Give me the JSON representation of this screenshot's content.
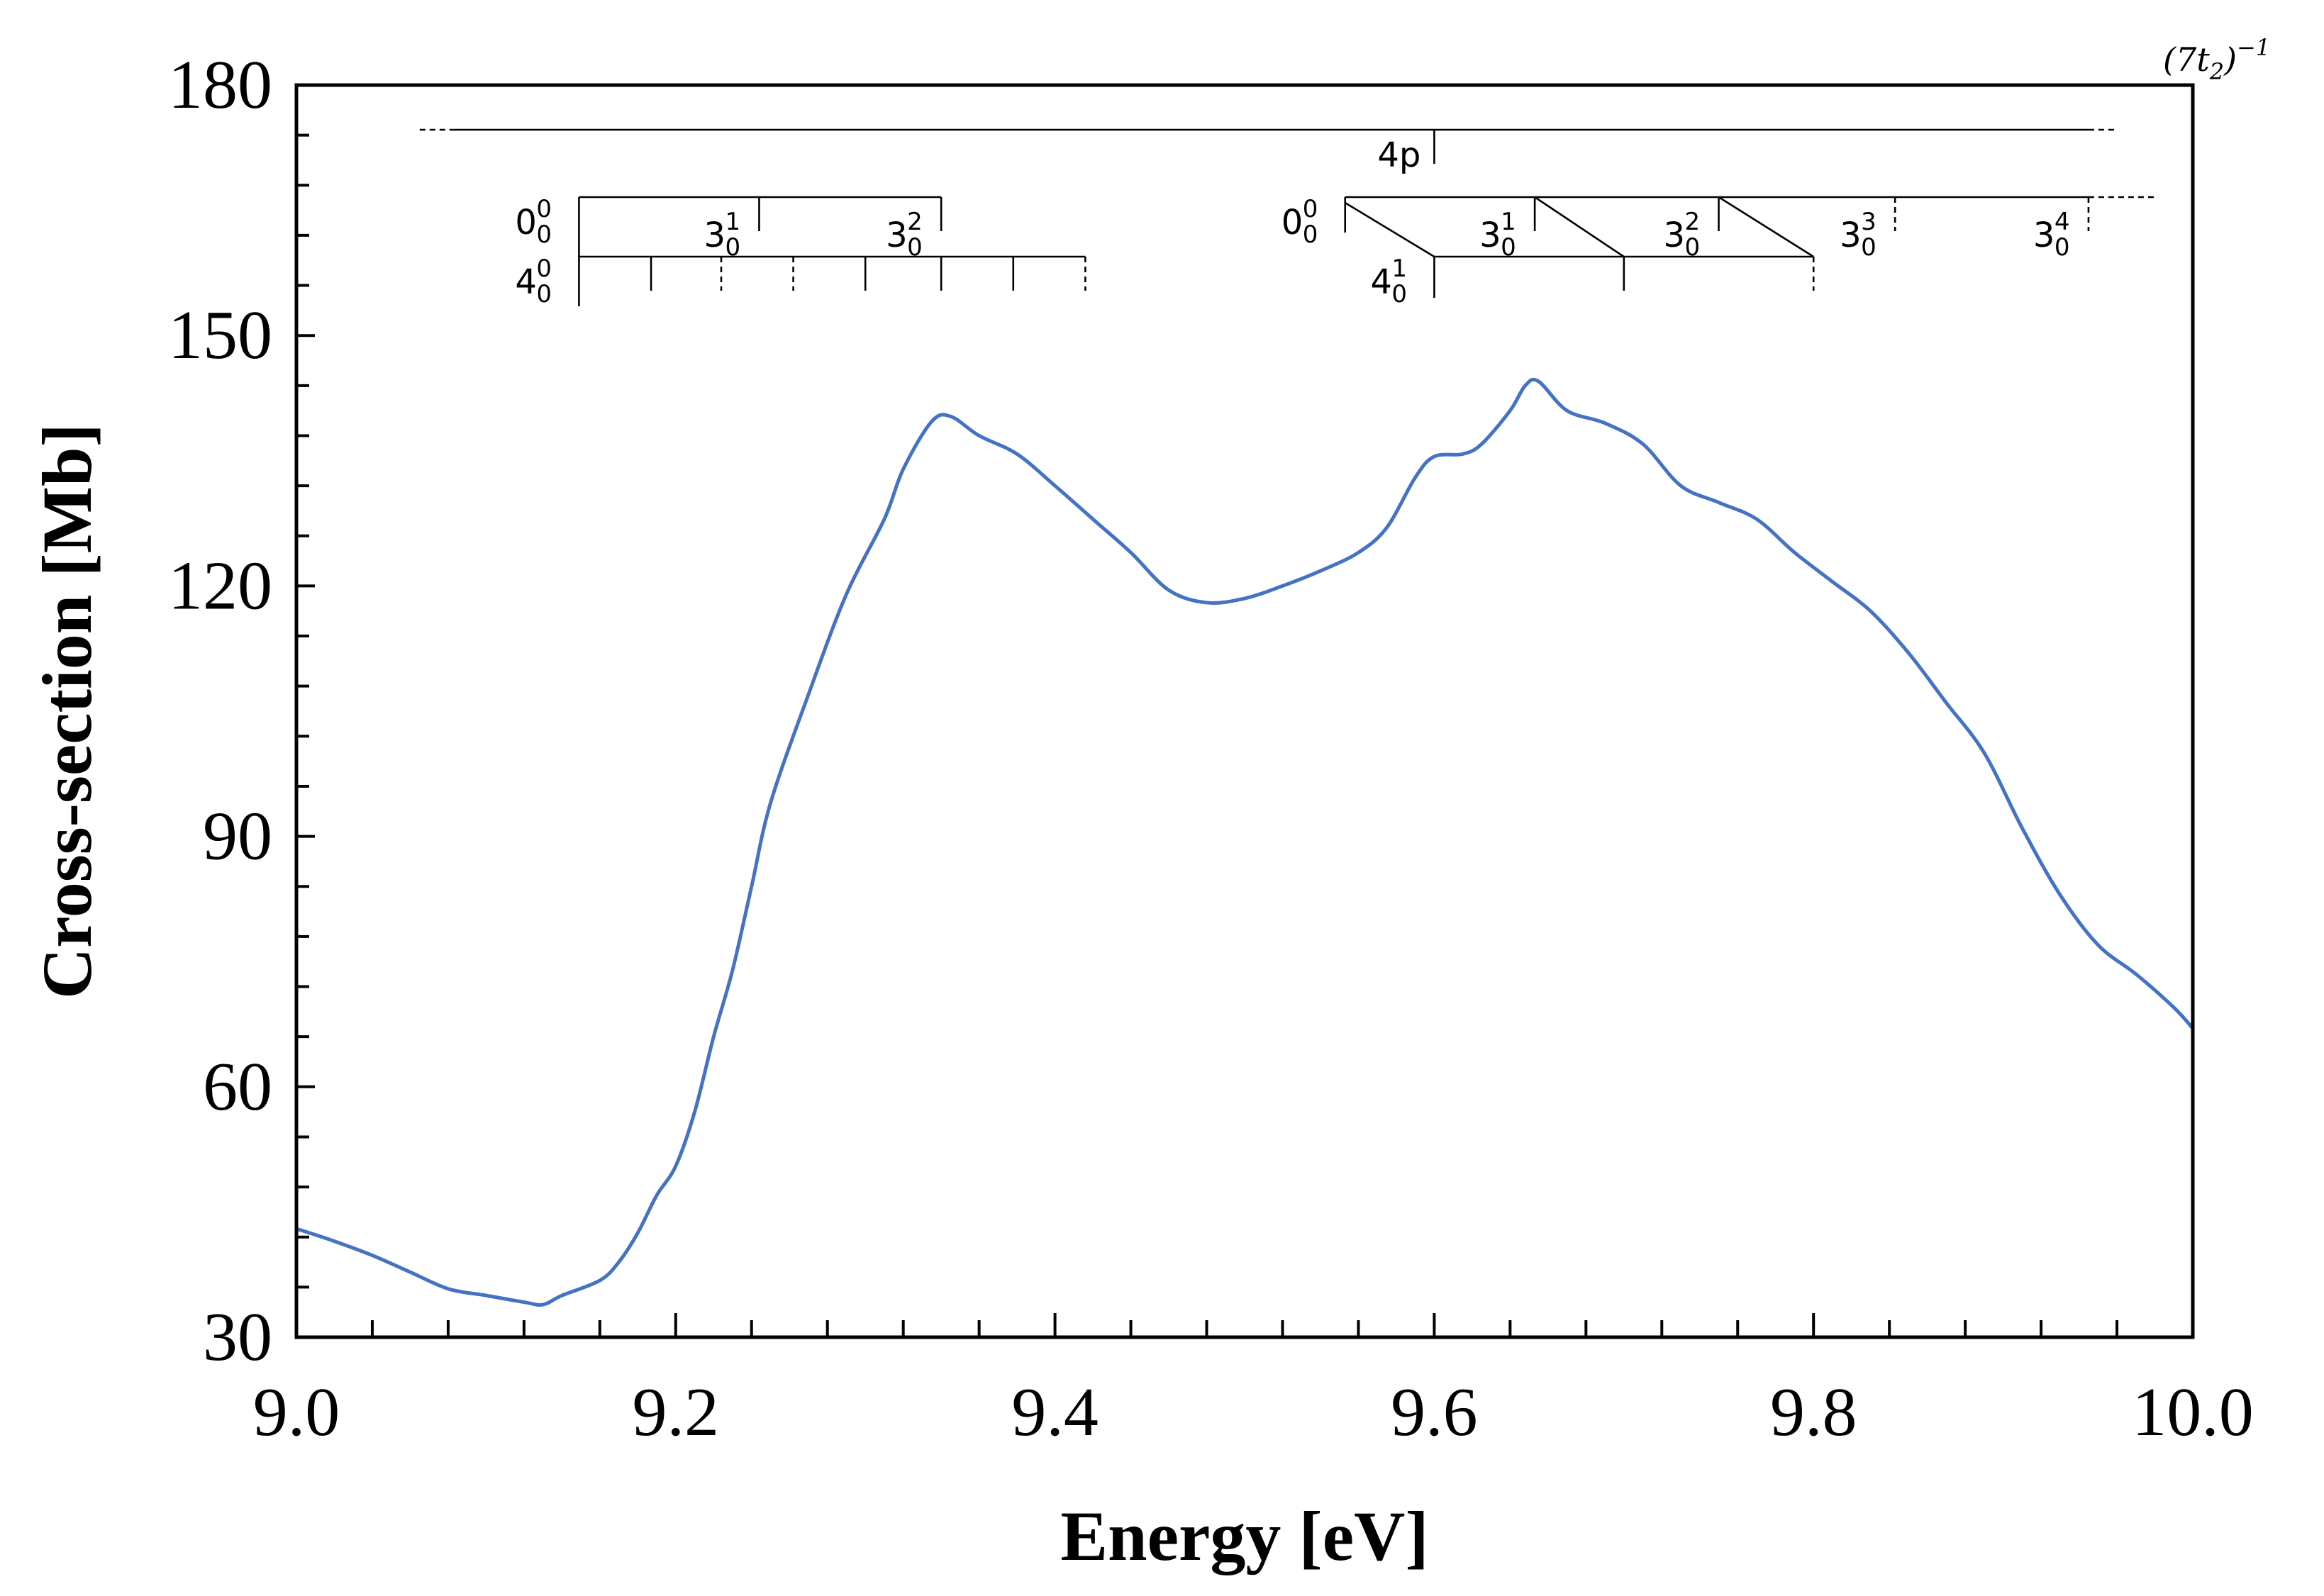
{
  "chart_data": {
    "type": "line",
    "xlabel": "Energy [eV]",
    "ylabel": "Cross-section [Mb]",
    "xlim": [
      9.0,
      10.0
    ],
    "ylim": [
      30,
      180
    ],
    "x_tick_labels": [
      "9.0",
      "9.2",
      "9.4",
      "9.6",
      "9.8",
      "10.0"
    ],
    "y_tick_labels": [
      "30",
      "60",
      "90",
      "120",
      "150",
      "180"
    ],
    "x_ticks": [
      9.0,
      9.2,
      9.4,
      9.6,
      9.8,
      10.0
    ],
    "y_ticks": [
      30,
      60,
      90,
      120,
      150,
      180
    ],
    "x_minor_step": 0.04,
    "y_minor_step": 6,
    "series": [
      {
        "name": "cross-section",
        "color": "#4472C4",
        "points": [
          [
            9.0,
            43.0
          ],
          [
            9.02,
            41.5
          ],
          [
            9.04,
            39.8
          ],
          [
            9.06,
            37.8
          ],
          [
            9.08,
            35.8
          ],
          [
            9.1,
            35.0
          ],
          [
            9.12,
            34.2
          ],
          [
            9.13,
            33.9
          ],
          [
            9.14,
            35.0
          ],
          [
            9.16,
            36.8
          ],
          [
            9.17,
            39.0
          ],
          [
            9.18,
            42.5
          ],
          [
            9.19,
            47.0
          ],
          [
            9.2,
            50.5
          ],
          [
            9.21,
            57.0
          ],
          [
            9.22,
            66.0
          ],
          [
            9.23,
            74.0
          ],
          [
            9.24,
            84.0
          ],
          [
            9.25,
            94.0
          ],
          [
            9.27,
            107.0
          ],
          [
            9.29,
            119.0
          ],
          [
            9.31,
            128.0
          ],
          [
            9.32,
            134.0
          ],
          [
            9.335,
            139.7
          ],
          [
            9.345,
            140.3
          ],
          [
            9.36,
            138.0
          ],
          [
            9.38,
            135.8
          ],
          [
            9.4,
            132.0
          ],
          [
            9.42,
            128.0
          ],
          [
            9.44,
            124.0
          ],
          [
            9.46,
            119.5
          ],
          [
            9.48,
            118.0
          ],
          [
            9.5,
            118.5
          ],
          [
            9.52,
            120.0
          ],
          [
            9.54,
            121.8
          ],
          [
            9.56,
            124.0
          ],
          [
            9.575,
            127.0
          ],
          [
            9.59,
            133.0
          ],
          [
            9.6,
            135.5
          ],
          [
            9.615,
            135.8
          ],
          [
            9.625,
            137.0
          ],
          [
            9.64,
            141.0
          ],
          [
            9.648,
            144.0
          ],
          [
            9.655,
            144.5
          ],
          [
            9.67,
            141.0
          ],
          [
            9.69,
            139.5
          ],
          [
            9.71,
            137.0
          ],
          [
            9.73,
            132.0
          ],
          [
            9.75,
            130.0
          ],
          [
            9.77,
            128.0
          ],
          [
            9.79,
            124.0
          ],
          [
            9.81,
            120.5
          ],
          [
            9.83,
            117.0
          ],
          [
            9.85,
            112.0
          ],
          [
            9.87,
            106.0
          ],
          [
            9.89,
            100.0
          ],
          [
            9.91,
            91.0
          ],
          [
            9.93,
            83.0
          ],
          [
            9.95,
            77.0
          ],
          [
            9.97,
            73.5
          ],
          [
            9.99,
            69.5
          ],
          [
            10.0,
            67.0
          ]
        ]
      }
    ],
    "annotations": {
      "band_label": "(7t",
      "band_label_sub": "2",
      "band_label_tail": ")",
      "band_label_sup": "−1",
      "series_4p": {
        "label": "4p",
        "x_start": 9.065,
        "x_solid_start": 9.082,
        "x_solid_end": 9.945,
        "x_end": 9.96,
        "label_x": 9.6
      },
      "ladder_left": {
        "origin_label": "0",
        "origin_sub": "0",
        "origin_sup": "0",
        "mode3_labels": [
          {
            "main": "3",
            "sub": "0",
            "sup": "1",
            "x": 9.244
          },
          {
            "main": "3",
            "sub": "0",
            "sup": "2",
            "x": 9.34
          }
        ],
        "mode4_label": {
          "main": "4",
          "sub": "0",
          "sup": "0"
        },
        "x0": 9.149,
        "mode4_solid": [
          9.187,
          9.3,
          9.34,
          9.378
        ],
        "mode4_dashed": [
          9.224,
          9.262,
          9.416
        ]
      },
      "ladder_right": {
        "origin_label": "0",
        "origin_sub": "0",
        "origin_sup": "0",
        "mode3_labels": [
          {
            "main": "3",
            "sub": "0",
            "sup": "1",
            "x": 9.653
          },
          {
            "main": "3",
            "sub": "0",
            "sup": "2",
            "x": 9.75
          },
          {
            "main": "3",
            "sub": "0",
            "sup": "3",
            "x": 9.843
          },
          {
            "main": "3",
            "sub": "0",
            "sup": "4",
            "x": 9.945
          }
        ],
        "mode4_label": {
          "main": "4",
          "sub": "0",
          "sup": "1"
        },
        "x0": 9.553,
        "x_bar_end": 9.945,
        "x_dash_end": 9.98,
        "mode4_start": 9.6,
        "mode4_end": 9.8,
        "mode4_mid": 9.7,
        "mode4_dashed_end": 9.8
      }
    }
  }
}
